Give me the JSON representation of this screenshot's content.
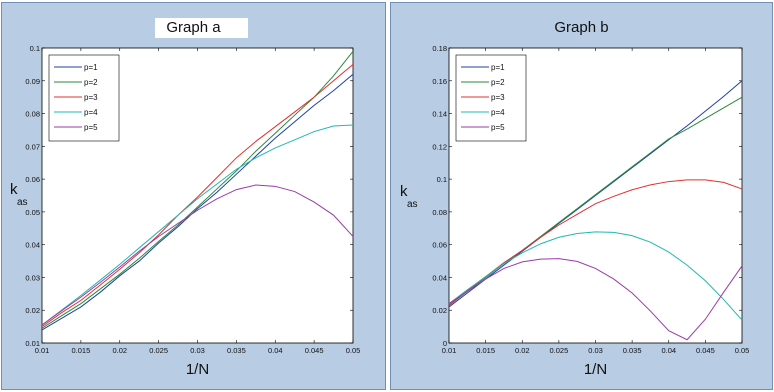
{
  "chart_data": [
    {
      "type": "line",
      "title": "Graph a",
      "xlabel": "1/N",
      "ylabel_main": "k",
      "ylabel_sub": "as",
      "xlim": [
        0.01,
        0.05
      ],
      "ylim": [
        0.01,
        0.1
      ],
      "xticks": [
        "0.01",
        "0.015",
        "0.02",
        "0.025",
        "0.03",
        "0.035",
        "0.04",
        "0.045",
        "0.05"
      ],
      "yticks": [
        "0.01",
        "0.02",
        "0.03",
        "0.04",
        "0.05",
        "0.06",
        "0.07",
        "0.08",
        "0.09",
        "0.1"
      ],
      "grid": false,
      "legend": "top-left",
      "x": [
        0.01,
        0.0125,
        0.015,
        0.0175,
        0.02,
        0.0225,
        0.025,
        0.0275,
        0.03,
        0.0325,
        0.035,
        0.0375,
        0.04,
        0.0425,
        0.045,
        0.0475,
        0.05
      ],
      "series": [
        {
          "name": "p=1",
          "color": "#1f3fa8",
          "values": [
            0.014,
            0.0175,
            0.021,
            0.0255,
            0.0305,
            0.035,
            0.0405,
            0.0455,
            0.051,
            0.056,
            0.0615,
            0.067,
            0.0725,
            0.0775,
            0.0825,
            0.087,
            0.092
          ]
        },
        {
          "name": "p=2",
          "color": "#2a8a3a",
          "values": [
            0.0145,
            0.0183,
            0.022,
            0.0265,
            0.031,
            0.0358,
            0.041,
            0.046,
            0.0515,
            0.057,
            0.0625,
            0.0685,
            0.074,
            0.0795,
            0.085,
            0.0915,
            0.099
          ]
        },
        {
          "name": "p=3",
          "color": "#e03030",
          "values": [
            0.015,
            0.0192,
            0.023,
            0.0277,
            0.0325,
            0.0375,
            0.043,
            0.049,
            0.0545,
            0.0605,
            0.0665,
            0.0715,
            0.076,
            0.0805,
            0.085,
            0.09,
            0.095
          ]
        },
        {
          "name": "p=4",
          "color": "#20b8b0",
          "values": [
            0.0155,
            0.02,
            0.0245,
            0.0292,
            0.034,
            0.039,
            0.044,
            0.049,
            0.054,
            0.0585,
            0.063,
            0.0665,
            0.0695,
            0.072,
            0.0745,
            0.0762,
            0.0765
          ]
        },
        {
          "name": "p=5",
          "color": "#9a3aa8",
          "values": [
            0.0155,
            0.0198,
            0.024,
            0.0285,
            0.0332,
            0.038,
            0.0425,
            0.0465,
            0.0505,
            0.054,
            0.0568,
            0.0582,
            0.0578,
            0.0562,
            0.053,
            0.049,
            0.0425
          ]
        }
      ]
    },
    {
      "type": "line",
      "title": "Graph b",
      "xlabel": "1/N",
      "ylabel_main": "k",
      "ylabel_sub": "as",
      "xlim": [
        0.01,
        0.05
      ],
      "ylim": [
        0,
        0.18
      ],
      "xticks": [
        "0.01",
        "0.015",
        "0.02",
        "0.025",
        "0.03",
        "0.035",
        "0.04",
        "0.045",
        "0.05"
      ],
      "yticks": [
        "0",
        "0.02",
        "0.04",
        "0.06",
        "0.08",
        "0.1",
        "0.12",
        "0.14",
        "0.16",
        "0.18"
      ],
      "grid": false,
      "legend": "top-left",
      "x": [
        0.01,
        0.0125,
        0.015,
        0.0175,
        0.02,
        0.0225,
        0.025,
        0.0275,
        0.03,
        0.0325,
        0.035,
        0.0375,
        0.04,
        0.0425,
        0.045,
        0.0475,
        0.05
      ],
      "series": [
        {
          "name": "p=1",
          "color": "#1f3fa8",
          "values": [
            0.022,
            0.0305,
            0.039,
            0.0475,
            0.056,
            0.0645,
            0.073,
            0.0815,
            0.09,
            0.0985,
            0.107,
            0.1155,
            0.124,
            0.1325,
            0.1415,
            0.1505,
            0.16
          ]
        },
        {
          "name": "p=2",
          "color": "#2a8a3a",
          "values": [
            0.023,
            0.0315,
            0.04,
            0.0485,
            0.0565,
            0.065,
            0.0735,
            0.082,
            0.0905,
            0.099,
            0.1075,
            0.116,
            0.1245,
            0.1305,
            0.137,
            0.1435,
            0.15
          ]
        },
        {
          "name": "p=3",
          "color": "#e03030",
          "values": [
            0.023,
            0.032,
            0.0405,
            0.049,
            0.0565,
            0.0645,
            0.072,
            0.0785,
            0.085,
            0.0895,
            0.0935,
            0.0965,
            0.0985,
            0.0995,
            0.0995,
            0.098,
            0.094
          ]
        },
        {
          "name": "p=4",
          "color": "#20b8b0",
          "values": [
            0.024,
            0.0325,
            0.0405,
            0.0485,
            0.055,
            0.0605,
            0.0645,
            0.0668,
            0.0678,
            0.0675,
            0.0655,
            0.0615,
            0.0555,
            0.0475,
            0.038,
            0.0265,
            0.014
          ]
        },
        {
          "name": "p=5",
          "color": "#9a3aa8",
          "values": [
            0.024,
            0.0315,
            0.039,
            0.0455,
            0.0495,
            0.0512,
            0.0515,
            0.0498,
            0.0455,
            0.039,
            0.0305,
            0.0195,
            0.0075,
            0.002,
            0.0145,
            0.031,
            0.047
          ]
        }
      ]
    }
  ]
}
